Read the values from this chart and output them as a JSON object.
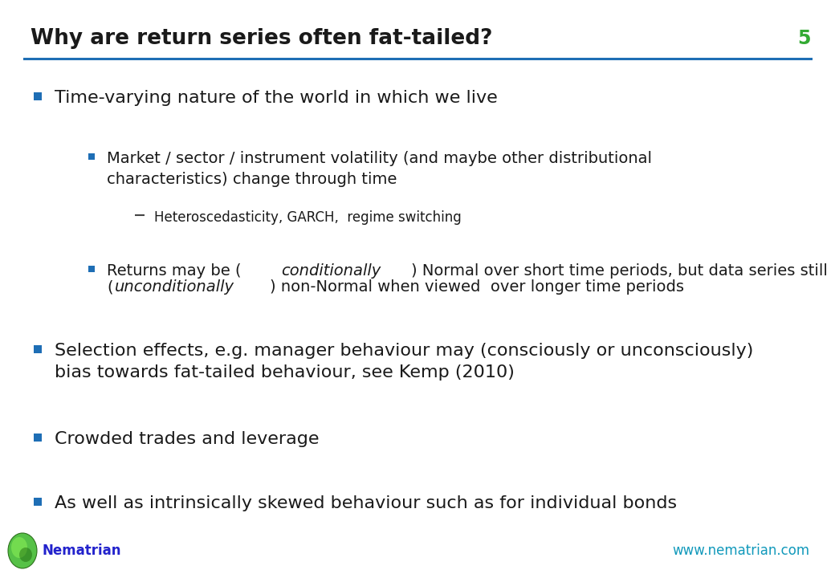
{
  "title": "Why are return series often fat-tailed?",
  "slide_number": "5",
  "title_color": "#1a1a1a",
  "title_fontsize": 19,
  "slide_number_color": "#33aa33",
  "header_line_color": "#1e6eb5",
  "background_color": "#ffffff",
  "bullet_color": "#1e6eb5",
  "text_color": "#1a1a1a",
  "footer_brand": "Nematrian",
  "footer_brand_color": "#2222cc",
  "footer_url": "www.nematrian.com",
  "footer_url_color": "#1199bb",
  "fs_level0": 16,
  "fs_level1": 14,
  "fs_level2": 12,
  "bullets": [
    {
      "level": 0,
      "text": "Time-varying nature of the world in which we live",
      "mixed": false
    },
    {
      "level": 1,
      "text": "Market / sector / instrument volatility (and maybe other distributional\ncharacteristics) change through time",
      "mixed": false
    },
    {
      "level": 2,
      "text": "Heteroscedasticity, GARCH,  regime switching",
      "mixed": false
    },
    {
      "level": 1,
      "mixed": true,
      "text_parts": [
        {
          "text": "Returns may be (",
          "italic": false
        },
        {
          "text": "conditionally",
          "italic": true
        },
        {
          "text": ") Normal over short time periods, but data series still",
          "italic": false
        },
        {
          "text": "\n",
          "italic": false
        },
        {
          "text": "(",
          "italic": false
        },
        {
          "text": "unconditionally",
          "italic": true
        },
        {
          "text": ") non-Normal when viewed  over longer time periods",
          "italic": false
        }
      ]
    },
    {
      "level": 0,
      "text": "Selection effects, e.g. manager behaviour may (consciously or unconsciously)\nbias towards fat-tailed behaviour, see Kemp (2010)",
      "mixed": false
    },
    {
      "level": 0,
      "text": "Crowded trades and leverage",
      "mixed": false
    },
    {
      "level": 0,
      "text": "As well as intrinsically skewed behaviour such as for individual bonds",
      "mixed": false
    }
  ]
}
